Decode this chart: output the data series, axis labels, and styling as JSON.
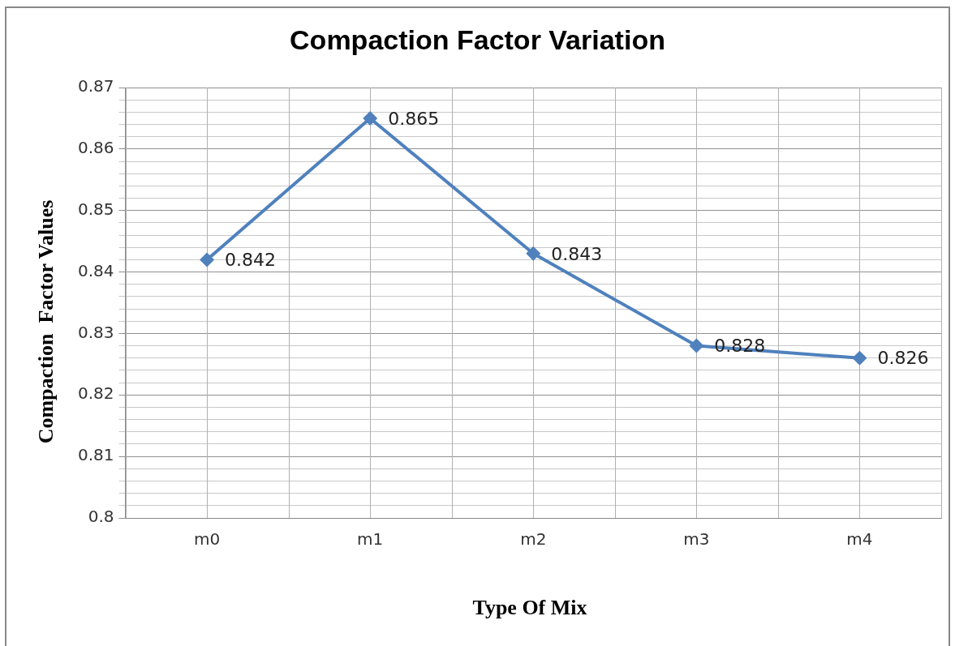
{
  "chart_data": {
    "type": "line",
    "title": "Compaction Factor Variation",
    "xlabel": "Type Of Mix",
    "ylabel": "Compaction  Factor Values",
    "categories": [
      "m0",
      "m1",
      "m2",
      "m3",
      "m4"
    ],
    "series": [
      {
        "color": "#4f81bd",
        "values": [
          0.842,
          0.865,
          0.843,
          0.828,
          0.826
        ]
      }
    ],
    "ylim": [
      0.8,
      0.87
    ],
    "yticks": [
      0.8,
      {
        "value": 0.802,
        "label": null
      },
      {
        "value": 0.804,
        "label": null
      },
      {
        "value": 0.806,
        "label": null
      },
      {
        "value": 0.808,
        "label": null
      },
      0.81,
      {
        "value": 0.812,
        "label": null
      },
      {
        "value": 0.814,
        "label": null
      },
      {
        "value": 0.816,
        "label": null
      },
      {
        "value": 0.818,
        "label": null
      },
      0.82,
      {
        "value": 0.822,
        "label": null
      },
      {
        "value": 0.824,
        "label": null
      },
      {
        "value": 0.826,
        "label": null
      },
      {
        "value": 0.828,
        "label": null
      },
      0.83,
      {
        "value": 0.832,
        "label": null
      },
      {
        "value": 0.834,
        "label": null
      },
      {
        "value": 0.836,
        "label": null
      },
      {
        "value": 0.838,
        "label": null
      },
      0.84,
      {
        "value": 0.842,
        "label": null
      },
      {
        "value": 0.844,
        "label": null
      },
      {
        "value": 0.846,
        "label": null
      },
      {
        "value": 0.848,
        "label": null
      },
      0.85,
      {
        "value": 0.852,
        "label": null
      },
      {
        "value": 0.854,
        "label": null
      },
      {
        "value": 0.856,
        "label": null
      },
      {
        "value": 0.858,
        "label": null
      },
      0.86,
      {
        "value": 0.862,
        "label": null
      },
      {
        "value": 0.864,
        "label": null
      },
      {
        "value": 0.866,
        "label": null
      },
      {
        "value": 0.868,
        "label": null
      },
      0.87
    ],
    "grid": true,
    "marker": "diamond",
    "line_style": "solid",
    "data_labels": true,
    "legend": false
  }
}
